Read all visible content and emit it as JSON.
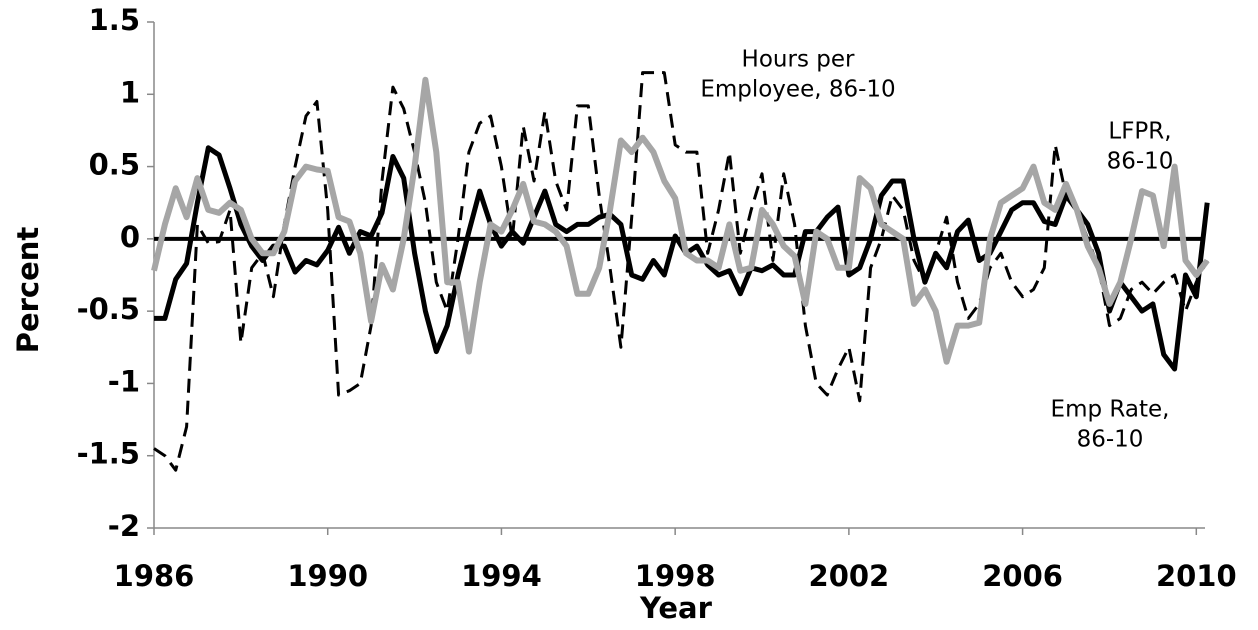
{
  "chart_data": {
    "type": "line",
    "y_label": "Percent",
    "x_label": "Year",
    "xlim": [
      1986,
      2010.2
    ],
    "xticks": [
      1986,
      1990,
      1994,
      1998,
      2002,
      2006,
      2010
    ],
    "ylim": [
      -2,
      1.5
    ],
    "yticks": [
      -2,
      -1.5,
      -1,
      -0.5,
      0,
      0.5,
      1,
      1.5
    ],
    "x": [
      1986,
      1986.25,
      1986.5,
      1986.75,
      1987,
      1987.25,
      1987.5,
      1987.75,
      1988,
      1988.25,
      1988.5,
      1988.75,
      1989,
      1989.25,
      1989.5,
      1989.75,
      1990,
      1990.25,
      1990.5,
      1990.75,
      1991,
      1991.25,
      1991.5,
      1991.75,
      1992,
      1992.25,
      1992.5,
      1992.75,
      1993,
      1993.25,
      1993.5,
      1993.75,
      1994,
      1994.25,
      1994.5,
      1994.75,
      1995,
      1995.25,
      1995.5,
      1995.75,
      1996,
      1996.25,
      1996.5,
      1996.75,
      1997,
      1997.25,
      1997.5,
      1997.75,
      1998,
      1998.25,
      1998.5,
      1998.75,
      1999,
      1999.25,
      1999.5,
      1999.75,
      2000,
      2000.25,
      2000.5,
      2000.75,
      2001,
      2001.25,
      2001.5,
      2001.75,
      2002,
      2002.25,
      2002.5,
      2002.75,
      2003,
      2003.25,
      2003.5,
      2003.75,
      2004,
      2004.25,
      2004.5,
      2004.75,
      2005,
      2005.25,
      2005.5,
      2005.75,
      2006,
      2006.25,
      2006.5,
      2006.75,
      2007,
      2007.25,
      2007.5,
      2007.75,
      2008,
      2008.25,
      2008.5,
      2008.75,
      2009,
      2009.25,
      2009.5,
      2009.75,
      2010,
      2010.25
    ],
    "series": [
      {
        "name": "Hours per Employee, 86-10",
        "color": "#000000",
        "dashed": true,
        "width": 3,
        "values": [
          -1.45,
          -1.5,
          -1.6,
          -1.3,
          0.1,
          -0.03,
          -0.02,
          0.2,
          -0.72,
          -0.2,
          -0.1,
          -0.4,
          0.1,
          0.5,
          0.85,
          0.95,
          0.2,
          -1.08,
          -1.05,
          -1.0,
          -0.6,
          0.4,
          1.05,
          0.9,
          0.6,
          0.25,
          -0.3,
          -0.5,
          0.0,
          0.6,
          0.8,
          0.85,
          0.5,
          0.0,
          0.78,
          0.4,
          0.88,
          0.4,
          0.2,
          0.92,
          0.92,
          0.3,
          -0.2,
          -0.75,
          0.15,
          1.15,
          1.15,
          1.15,
          0.65,
          0.6,
          0.6,
          -0.1,
          0.2,
          0.6,
          -0.1,
          0.2,
          0.45,
          -0.15,
          0.45,
          0.1,
          -0.6,
          -1.0,
          -1.08,
          -0.9,
          -0.75,
          -1.12,
          -0.2,
          0.0,
          0.3,
          0.2,
          -0.15,
          -0.3,
          -0.1,
          0.15,
          -0.3,
          -0.55,
          -0.45,
          -0.2,
          -0.1,
          -0.3,
          -0.4,
          -0.35,
          -0.2,
          0.65,
          0.3,
          0.2,
          0.0,
          -0.2,
          -0.6,
          -0.55,
          -0.35,
          -0.3,
          -0.38,
          -0.3,
          -0.25,
          -0.5,
          -0.3,
          -0.15
        ]
      },
      {
        "name": "Emp Rate, 86-10",
        "color": "#000000",
        "dashed": false,
        "width": 5,
        "values": [
          -0.55,
          -0.55,
          -0.28,
          -0.17,
          0.25,
          0.63,
          0.58,
          0.35,
          0.1,
          -0.05,
          -0.15,
          -0.05,
          -0.05,
          -0.23,
          -0.15,
          -0.18,
          -0.08,
          0.08,
          -0.1,
          0.05,
          0.02,
          0.18,
          0.57,
          0.42,
          -0.1,
          -0.5,
          -0.78,
          -0.6,
          -0.25,
          0.05,
          0.33,
          0.1,
          -0.05,
          0.05,
          -0.03,
          0.15,
          0.33,
          0.1,
          0.05,
          0.1,
          0.1,
          0.15,
          0.17,
          0.1,
          -0.25,
          -0.28,
          -0.15,
          -0.25,
          0.02,
          -0.1,
          -0.05,
          -0.18,
          -0.25,
          -0.22,
          -0.38,
          -0.2,
          -0.22,
          -0.18,
          -0.25,
          -0.25,
          0.05,
          0.05,
          0.15,
          0.22,
          -0.25,
          -0.2,
          0.0,
          0.3,
          0.4,
          0.4,
          0.0,
          -0.3,
          -0.1,
          -0.2,
          0.05,
          0.13,
          -0.15,
          -0.1,
          0.05,
          0.2,
          0.25,
          0.25,
          0.12,
          0.1,
          0.3,
          0.2,
          0.1,
          -0.1,
          -0.5,
          -0.3,
          -0.4,
          -0.5,
          -0.45,
          -0.8,
          -0.9,
          -0.25,
          -0.4,
          0.25
        ]
      },
      {
        "name": "LFPR, 86-10",
        "color": "#a6a6a6",
        "dashed": false,
        "width": 6,
        "values": [
          -0.22,
          0.1,
          0.35,
          0.15,
          0.42,
          0.2,
          0.18,
          0.25,
          0.2,
          0.0,
          -0.1,
          -0.1,
          0.05,
          0.4,
          0.5,
          0.48,
          0.47,
          0.15,
          0.12,
          -0.1,
          -0.57,
          -0.18,
          -0.35,
          0.0,
          0.5,
          1.1,
          0.6,
          -0.3,
          -0.3,
          -0.78,
          -0.3,
          0.1,
          0.05,
          0.2,
          0.38,
          0.12,
          0.1,
          0.05,
          -0.05,
          -0.38,
          -0.38,
          -0.2,
          0.2,
          0.68,
          0.6,
          0.7,
          0.6,
          0.4,
          0.28,
          -0.1,
          -0.15,
          -0.15,
          -0.2,
          0.1,
          -0.22,
          -0.2,
          0.2,
          0.1,
          -0.05,
          -0.12,
          -0.45,
          0.05,
          0.0,
          -0.2,
          -0.2,
          0.42,
          0.35,
          0.1,
          0.05,
          0.0,
          -0.45,
          -0.35,
          -0.5,
          -0.85,
          -0.6,
          -0.6,
          -0.58,
          0.0,
          0.25,
          0.3,
          0.35,
          0.5,
          0.25,
          0.2,
          0.38,
          0.2,
          -0.05,
          -0.2,
          -0.45,
          -0.3,
          0.0,
          0.33,
          0.3,
          -0.05,
          0.5,
          -0.15,
          -0.25,
          -0.15
        ]
      }
    ],
    "annotations": [
      {
        "lines": [
          "Hours per",
          "Employee, 86-10"
        ]
      },
      {
        "lines": [
          "LFPR,",
          "86-10"
        ]
      },
      {
        "lines": [
          "Emp Rate,",
          "86-10"
        ]
      }
    ]
  }
}
